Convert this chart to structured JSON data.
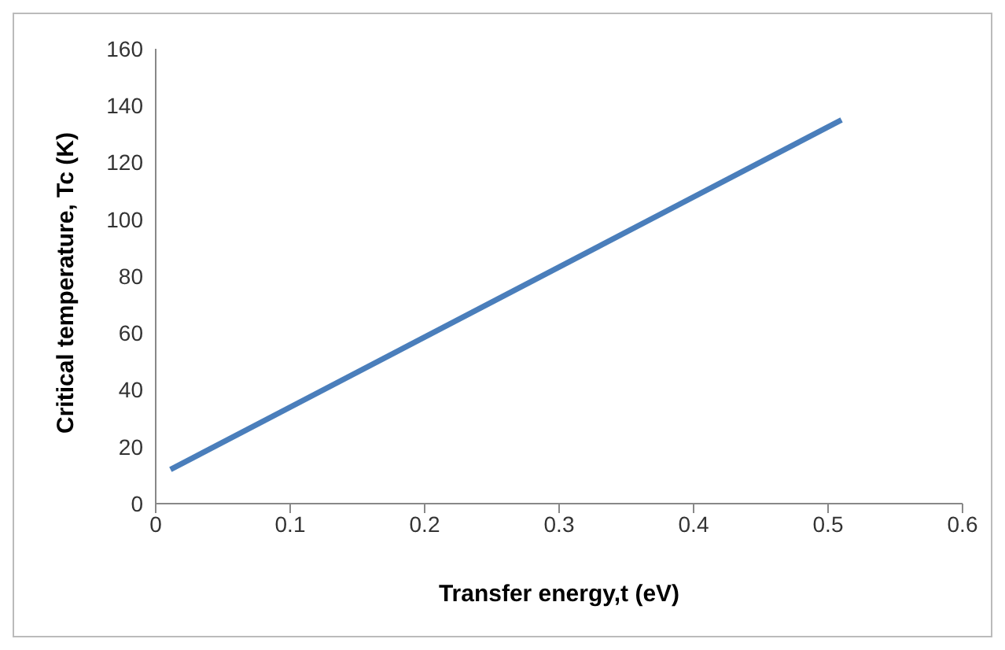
{
  "chart_data": {
    "type": "line",
    "xlabel": "Transfer energy,t (eV)",
    "ylabel": "Critical temperature, Tc (K)",
    "series": [
      {
        "color": "#4a7ebb",
        "x": [
          0.011,
          0.51
        ],
        "values": [
          12,
          135
        ]
      }
    ],
    "xlim": [
      0,
      0.6
    ],
    "xticks": [
      0,
      0.1,
      0.2,
      0.3,
      0.4,
      0.5,
      0.6
    ],
    "ylim": [
      0,
      160
    ],
    "yticks": [
      0,
      20,
      40,
      60,
      80,
      100,
      120,
      140,
      160
    ],
    "grid": false,
    "legend": false,
    "marker": "none",
    "line_style": "solid"
  }
}
